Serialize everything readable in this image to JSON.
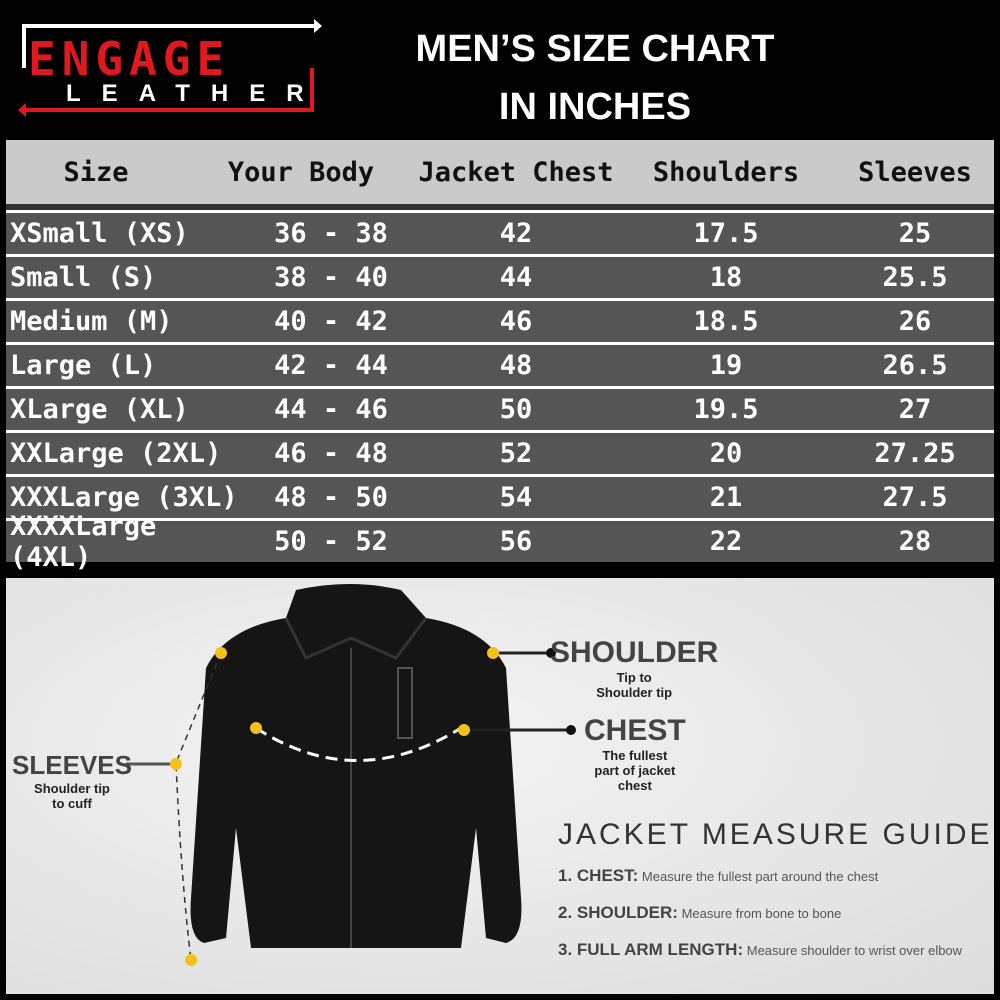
{
  "logo": {
    "line1": "ENGAGE",
    "line2": "LEATHER"
  },
  "title": {
    "line1": "MEN’S SIZE CHART",
    "line2": "IN INCHES"
  },
  "table": {
    "headers": [
      "Size",
      "Your Body",
      "Jacket Chest",
      "Shoulders",
      "Sleeves"
    ],
    "rows": [
      [
        "XSmall (XS)",
        "36 - 38",
        "42",
        "17.5",
        "25"
      ],
      [
        "Small (S)",
        "38 - 40",
        "44",
        "18",
        "25.5"
      ],
      [
        "Medium (M)",
        "40 - 42",
        "46",
        "18.5",
        "26"
      ],
      [
        "Large (L)",
        "42 - 44",
        "48",
        "19",
        "26.5"
      ],
      [
        "XLarge (XL)",
        "44 - 46",
        "50",
        "19.5",
        "27"
      ],
      [
        "XXLarge (2XL)",
        "46 - 48",
        "52",
        "20",
        "27.25"
      ],
      [
        "XXXLarge (3XL)",
        "48 - 50",
        "54",
        "21",
        "27.5"
      ],
      [
        "XXXXLarge (4XL)",
        "50 - 52",
        "56",
        "22",
        "28"
      ]
    ]
  },
  "labels": {
    "shoulder": {
      "title": "SHOULDER",
      "desc1": "Tip to",
      "desc2": "Shoulder tip"
    },
    "chest": {
      "title": "CHEST",
      "desc1": "The fullest",
      "desc2": "part  of jacket",
      "desc3": "chest"
    },
    "sleeves": {
      "title": "SLEEVES",
      "desc1": "Shoulder tip",
      "desc2": "to cuff"
    }
  },
  "guide": {
    "title": "JACKET MEASURE GUIDE",
    "items": [
      {
        "label": "1. CHEST:",
        "text": "Measure the fullest part around the chest"
      },
      {
        "label": "2. SHOULDER:",
        "text": "Measure from bone to bone"
      },
      {
        "label": "3. FULL ARM LENGTH:",
        "text": "Measure shoulder to wrist over elbow"
      }
    ]
  },
  "colors": {
    "brand_red": "#e0191f",
    "row_bg": "#555555",
    "header_bg": "#cacaca",
    "marker": "#f2c21b"
  }
}
